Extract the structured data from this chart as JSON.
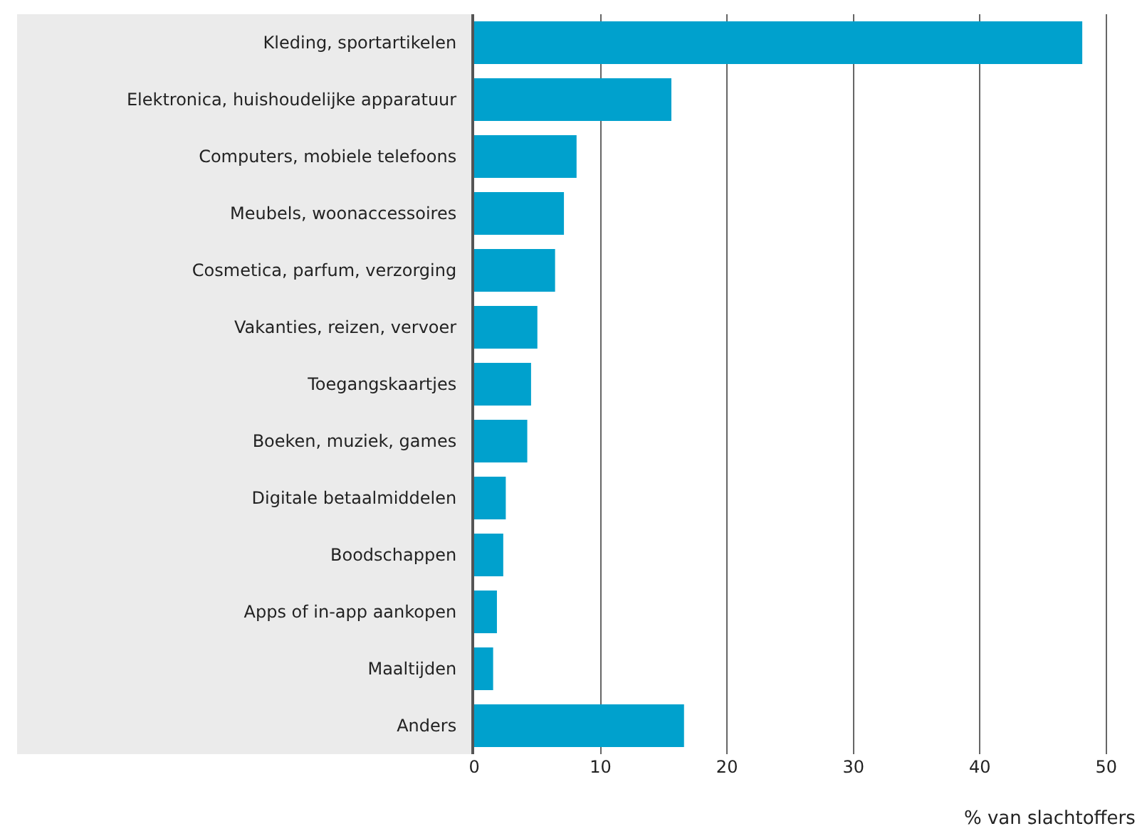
{
  "chart_data": {
    "type": "bar",
    "orientation": "horizontal",
    "xlabel": "% van slachtoffers",
    "categories": [
      "Kleding, sportartikelen",
      "Elektronica, huishoudelijke apparatuur",
      "Computers, mobiele telefoons",
      "Meubels, woonaccessoires",
      "Cosmetica, parfum, verzorging",
      "Vakanties, reizen, vervoer",
      "Toegangskaartjes",
      "Boeken, muziek, games",
      "Digitale betaalmiddelen",
      "Boodschappen",
      "Apps of in-app aankopen",
      "Maaltijden",
      "Anders"
    ],
    "values": [
      48.1,
      15.6,
      8.1,
      7.1,
      6.4,
      5.0,
      4.5,
      4.2,
      2.5,
      2.3,
      1.8,
      1.5,
      16.6
    ],
    "color": "#00a1cd",
    "xlim": [
      0,
      52.6
    ],
    "xticks": [
      0,
      10,
      20,
      30,
      40,
      50
    ],
    "grid": "x"
  }
}
